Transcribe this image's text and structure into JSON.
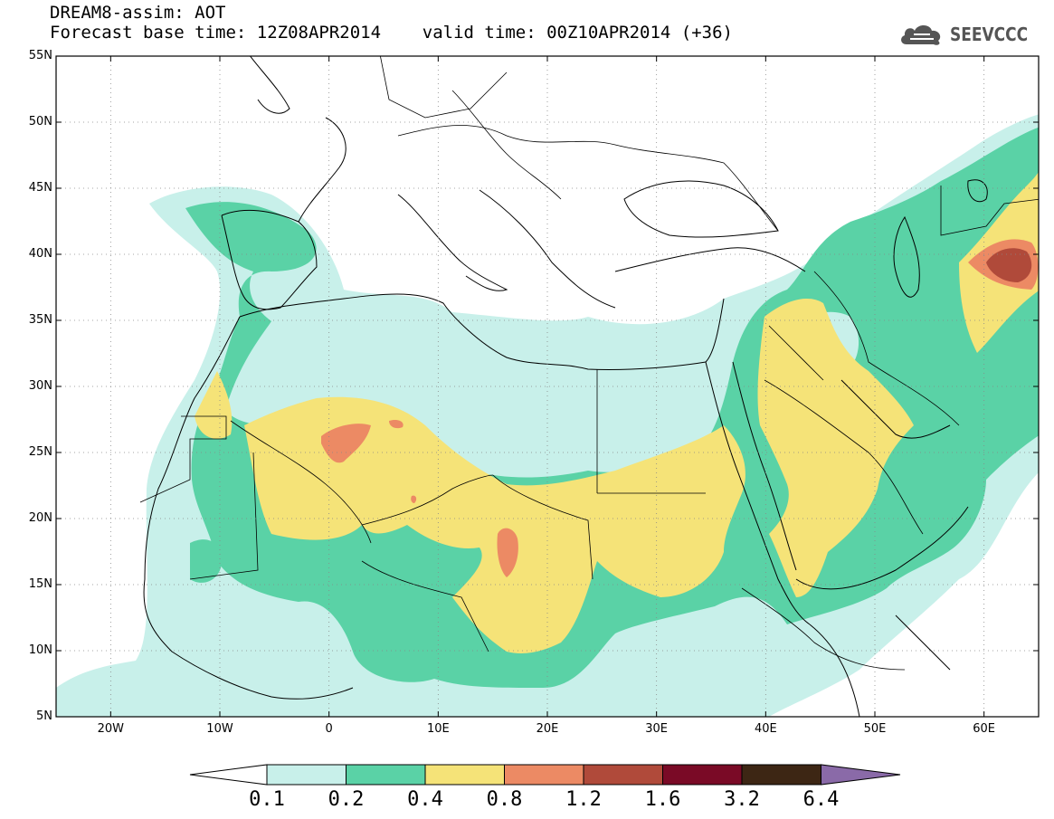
{
  "title": {
    "line1": "DREAM8-assim: AOT",
    "line2": "Forecast base time: 12Z08APR2014    valid time: 00Z10APR2014 (+36)"
  },
  "logo": {
    "text": "SEEVCCC",
    "icon": "cloud-icon",
    "color": "#555555"
  },
  "map": {
    "lon_range": [
      -25,
      65
    ],
    "lat_range": [
      5,
      55
    ],
    "lat_ticks": [
      "5N",
      "10N",
      "15N",
      "20N",
      "25N",
      "30N",
      "35N",
      "40N",
      "45N",
      "50N",
      "55N"
    ],
    "lon_ticks": [
      "20W",
      "10W",
      "0",
      "10E",
      "20E",
      "30E",
      "40E",
      "50E",
      "60E"
    ],
    "grid": "dotted"
  },
  "colorbar": {
    "labels": [
      "0.1",
      "0.2",
      "0.4",
      "0.8",
      "1.2",
      "1.6",
      "3.2",
      "6.4"
    ],
    "colors": [
      "#c8f0ea",
      "#5ad2a6",
      "#f5e378",
      "#ec8a64",
      "#b04a3a",
      "#7a0a26",
      "#3d2614",
      "#8a6aa8"
    ],
    "below_color": "#ffffff"
  }
}
